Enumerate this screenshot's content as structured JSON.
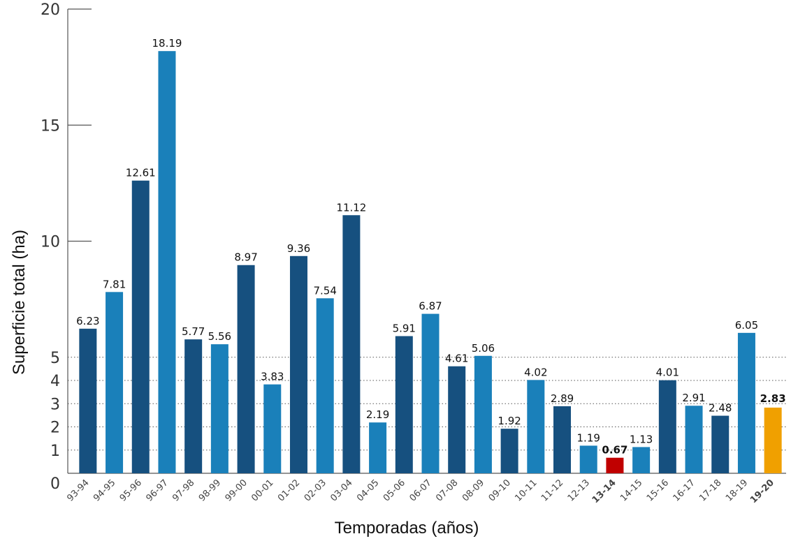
{
  "chart_data": {
    "type": "bar",
    "xlabel": "Temporadas (años)",
    "ylabel": "Superficie total (ha)",
    "ylim": [
      0,
      20
    ],
    "yticks": [
      0,
      1,
      2,
      3,
      4,
      5,
      10,
      15,
      20
    ],
    "gridlines_dotted": [
      1,
      2,
      3,
      4,
      5
    ],
    "categories": [
      "93-94",
      "94-95",
      "95-96",
      "96-97",
      "97-98",
      "98-99",
      "99-00",
      "00-01",
      "01-02",
      "02-03",
      "03-04",
      "04-05",
      "05-06",
      "06-07",
      "07-08",
      "08-09",
      "09-10",
      "10-11",
      "11-12",
      "12-13",
      "13-14",
      "14-15",
      "15-16",
      "16-17",
      "17-18",
      "18-19",
      "19-20"
    ],
    "values": [
      6.23,
      7.81,
      12.61,
      18.19,
      5.77,
      5.56,
      8.97,
      3.83,
      9.36,
      7.54,
      11.12,
      2.19,
      5.91,
      6.87,
      4.61,
      5.06,
      1.92,
      4.02,
      2.89,
      1.19,
      0.67,
      1.13,
      4.01,
      2.91,
      2.48,
      6.05,
      2.83
    ],
    "value_labels": [
      "6.23",
      "7.81",
      "12.61",
      "18.19",
      "5.77",
      "5.56",
      "8.97",
      "3.83",
      "9.36",
      "7.54",
      "11.12",
      "2.19",
      "5.91",
      "6.87",
      "4.61",
      "5.06",
      "1.92",
      "4.02",
      "2.89",
      "1.19",
      "0.67",
      "1.13",
      "4.01",
      "2.91",
      "2.48",
      "6.05",
      "2.83"
    ],
    "bar_colors": [
      "#16507f",
      "#1a80ba",
      "#16507f",
      "#1a80ba",
      "#16507f",
      "#1a80ba",
      "#16507f",
      "#1a80ba",
      "#16507f",
      "#1a80ba",
      "#16507f",
      "#1a80ba",
      "#16507f",
      "#1a80ba",
      "#16507f",
      "#1a80ba",
      "#16507f",
      "#1a80ba",
      "#16507f",
      "#1a80ba",
      "#c00000",
      "#1a80ba",
      "#16507f",
      "#1a80ba",
      "#16507f",
      "#1a80ba",
      "#f0a000"
    ],
    "highlight_min": "13-14",
    "highlight_current": "19-20",
    "colors": {
      "dark": "#16507f",
      "light": "#1a80ba",
      "min": "#c00000",
      "current": "#f0a000"
    }
  }
}
